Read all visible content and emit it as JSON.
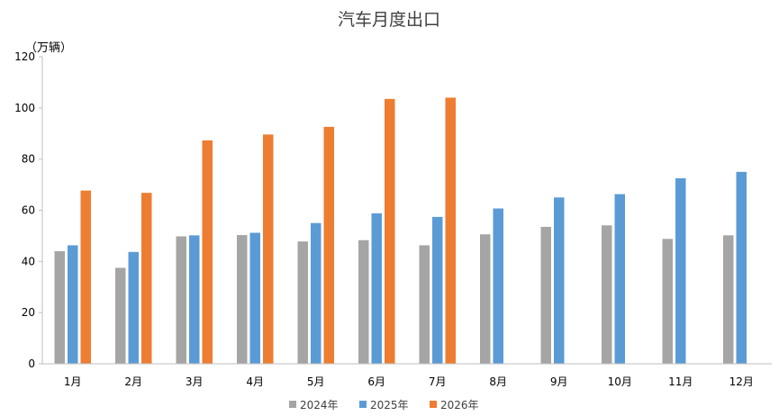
{
  "chart_data": {
    "type": "bar",
    "title": "汽车月度出口",
    "ylabel": "（万辆）",
    "xlabel": "",
    "ylim": [
      0,
      120
    ],
    "yticks": [
      0,
      20,
      40,
      60,
      80,
      100,
      120
    ],
    "grid": false,
    "legend_position": "bottom",
    "categories": [
      "1月",
      "2月",
      "3月",
      "4月",
      "5月",
      "6月",
      "7月",
      "8月",
      "9月",
      "10月",
      "11月",
      "12月"
    ],
    "series": [
      {
        "name": "2024年",
        "color": "#a5a5a5",
        "values": [
          44,
          37.5,
          49.8,
          50.3,
          47.8,
          48.3,
          46.3,
          50.6,
          53.5,
          54.1,
          48.8,
          50.2
        ]
      },
      {
        "name": "2025年",
        "color": "#5b9bd5",
        "values": [
          46.3,
          43.7,
          50.2,
          51.2,
          55,
          58.8,
          57.4,
          60.7,
          65,
          66.3,
          72.5,
          75
        ]
      },
      {
        "name": "2026年",
        "color": "#ed7d31",
        "values": [
          67.7,
          66.8,
          87.3,
          89.6,
          92.6,
          103.5,
          104,
          null,
          null,
          null,
          null,
          null
        ]
      }
    ]
  }
}
